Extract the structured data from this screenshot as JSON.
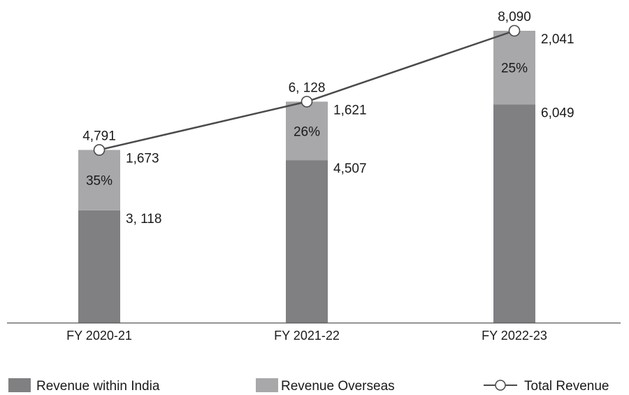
{
  "chart_data": {
    "type": "bar",
    "stacked": true,
    "categories": [
      "FY 2020-21",
      "FY 2021-22",
      "FY 2022-23"
    ],
    "series": [
      {
        "name": "Revenue within India",
        "values": [
          3118,
          4507,
          6049
        ],
        "labels": [
          "3, 118",
          "4,507",
          "6,049"
        ],
        "color": "#808083"
      },
      {
        "name": "Revenue Overseas",
        "values": [
          1673,
          1621,
          2041
        ],
        "labels": [
          "1,673",
          "1,621",
          "2,041"
        ],
        "share_labels": [
          "35%",
          "26%",
          "25%"
        ],
        "color": "#a8a8ab"
      }
    ],
    "line": {
      "name": "Total Revenue",
      "values": [
        4791,
        6128,
        8090
      ],
      "labels": [
        "4,791",
        "6, 128",
        "8,090"
      ],
      "color": "#4a4a4a"
    },
    "ylim": [
      0,
      8090
    ],
    "grid": false,
    "legend_position": "bottom"
  }
}
